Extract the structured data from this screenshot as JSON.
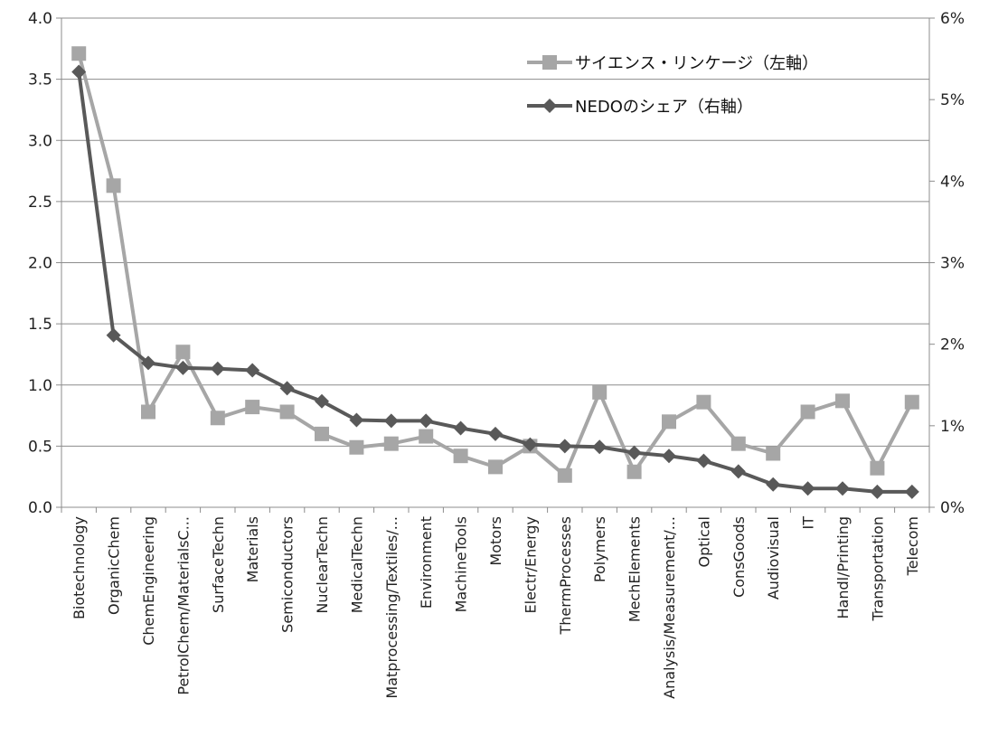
{
  "chart_data": {
    "type": "line",
    "categories": [
      "Biotechnology",
      "OrganicChem",
      "ChemEngineering",
      "PetrolChem/MaterialsC...",
      "SurfaceTechn",
      "Materials",
      "Semiconductors",
      "NuclearTechn",
      "MedicalTechn",
      "Matprocessing/Textiles/...",
      "Environment",
      "MachineTools",
      "Motors",
      "Electr/Energy",
      "ThermProcesses",
      "Polymers",
      "MechElements",
      "Analysis/Measurement/...",
      "Optical",
      "ConsGoods",
      "Audiovisual",
      "IT",
      "Handl/Printing",
      "Transportation",
      "Telecom"
    ],
    "left_axis": {
      "ylim": [
        0,
        4.0
      ],
      "ticks": [
        "0.0",
        "0.5",
        "1.0",
        "1.5",
        "2.0",
        "2.5",
        "3.0",
        "3.5",
        "4.0"
      ]
    },
    "right_axis": {
      "ylim": [
        0,
        6
      ],
      "ticks": [
        "0%",
        "1%",
        "2%",
        "3%",
        "4%",
        "5%",
        "6%"
      ]
    },
    "grid": true,
    "legend_position": "top-right",
    "series": [
      {
        "name": "サイエンス・リンケージ（左軸）",
        "axis": "left",
        "marker": "square",
        "color": "#a6a6a6",
        "values": [
          3.71,
          2.63,
          0.78,
          1.27,
          0.73,
          0.82,
          0.78,
          0.6,
          0.49,
          0.52,
          0.58,
          0.42,
          0.33,
          0.5,
          0.26,
          0.94,
          0.29,
          0.7,
          0.86,
          0.52,
          0.44,
          0.78,
          0.87,
          0.32,
          0.86
        ]
      },
      {
        "name": "NEDOのシェア（右軸）",
        "axis": "right",
        "marker": "diamond",
        "color": "#595959",
        "values": [
          5.34,
          2.11,
          1.77,
          1.71,
          1.7,
          1.68,
          1.46,
          1.3,
          1.07,
          1.06,
          1.06,
          0.97,
          0.9,
          0.77,
          0.75,
          0.74,
          0.67,
          0.63,
          0.57,
          0.44,
          0.28,
          0.23,
          0.23,
          0.19,
          0.19
        ]
      }
    ]
  }
}
